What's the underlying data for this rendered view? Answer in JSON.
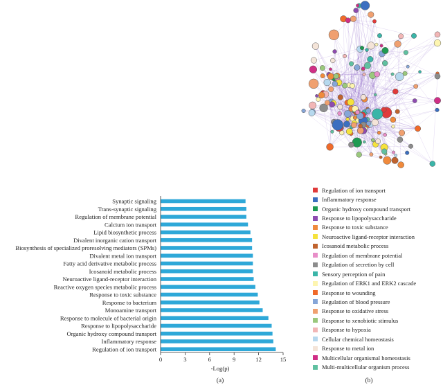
{
  "chart_data": [
    {
      "type": "bar",
      "orientation": "horizontal",
      "panel": "(a)",
      "xlabel": "-Log(p)",
      "xlim": [
        0,
        15
      ],
      "xticks": [
        0,
        3,
        6,
        9,
        12,
        15
      ],
      "bar_color": "#2ea8d8",
      "categories": [
        "Synaptic signaling",
        "Trans-synaptic signaling",
        "Regulation of membrane potential",
        "Calcium ion transport",
        "Lipid biosynthetic process",
        "Divalent inorganic cation transport",
        "Biosynthesis of specialized proresolving mediators (SPMs)",
        "Divalent metal ion transport",
        "Fatty acid derivative metabolic process",
        "Icosanoid metabolic process",
        "Neuroactive ligand-receptor interaction",
        "Reactive oxygen species metabolic process",
        "Response to toxic substance",
        "Response to bacterium",
        "Monoamine transport",
        "Response to molecule of bacterial origin",
        "Response to lipopolysaccharide",
        "Organic hydroxy compound transport",
        "Inflammatory response",
        "Regulation of ion transport"
      ],
      "values": [
        10.4,
        10.5,
        10.5,
        10.7,
        11.0,
        11.2,
        11.2,
        11.3,
        11.3,
        11.3,
        11.4,
        11.6,
        11.9,
        12.1,
        12.5,
        13.2,
        13.6,
        13.7,
        13.8,
        14.1
      ]
    },
    {
      "type": "network",
      "panel": "(b)",
      "legend": [
        {
          "label": "Regulation of ion transport",
          "color": "#e03a3a"
        },
        {
          "label": "Inflammatory response",
          "color": "#3b6fc0"
        },
        {
          "label": "Organic hydroxy compound transport",
          "color": "#1e9a52"
        },
        {
          "label": "Response to lipopolysaccharide",
          "color": "#8e4bb0"
        },
        {
          "label": "Response to toxic substance",
          "color": "#f08a3c"
        },
        {
          "label": "Neuroactive ligand-receptor interaction",
          "color": "#f5e23c"
        },
        {
          "label": "Icosanoid metabolic process",
          "color": "#c0632e"
        },
        {
          "label": "Regulation of membrane potential",
          "color": "#e88ec8"
        },
        {
          "label": "Regulation of secretion by cell",
          "color": "#8c8c8c"
        },
        {
          "label": "Sensory perception of pain",
          "color": "#3ab5a8"
        },
        {
          "label": "Regulation of ERK1 and ERK2 cascade",
          "color": "#fdf5b0"
        },
        {
          "label": "Response to wounding",
          "color": "#f06a2a"
        },
        {
          "label": "Regulation of blood pressure",
          "color": "#86a6d8"
        },
        {
          "label": "Response to oxidative stress",
          "color": "#f0a070"
        },
        {
          "label": "Response to xenobiotic stimulus",
          "color": "#9ac87c"
        },
        {
          "label": "Response to hypoxia",
          "color": "#f2b6b6"
        },
        {
          "label": "Cellular chemical homeostasis",
          "color": "#b6d8ee"
        },
        {
          "label": "Response to metal ion",
          "color": "#f4e4d8"
        },
        {
          "label": "Multicellular organismal homeostasis",
          "color": "#d02e86"
        },
        {
          "label": "Multi-multicellular organism process",
          "color": "#5fc0a0"
        }
      ]
    }
  ]
}
